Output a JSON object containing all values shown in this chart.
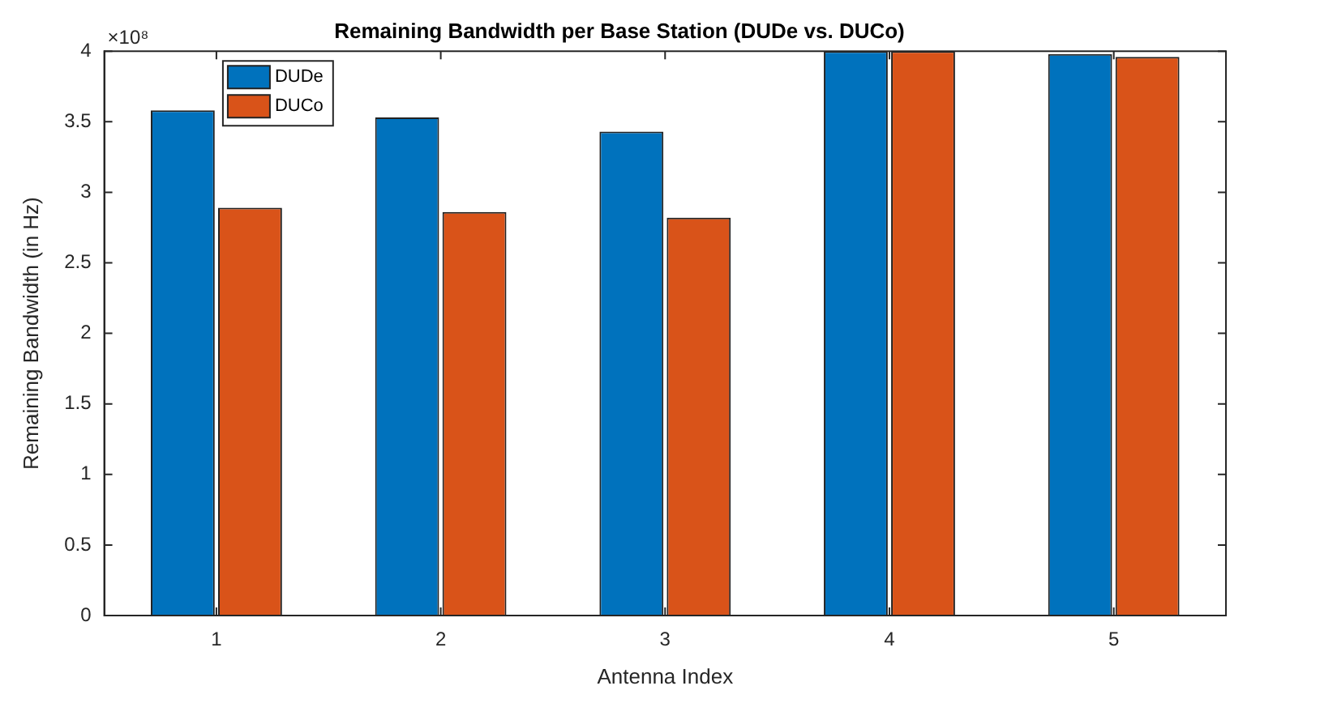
{
  "chart_data": {
    "type": "bar",
    "title": "Remaining Bandwidth per Base Station (DUDe vs. DUCo)",
    "xlabel": "Antenna Index",
    "ylabel": "Remaining Bandwidth (in Hz)",
    "annotations": [
      "×10⁸"
    ],
    "categories": [
      "1",
      "2",
      "3",
      "4",
      "5"
    ],
    "series": [
      {
        "name": "DUDe",
        "color": "#0072bd",
        "values": [
          3.58,
          3.53,
          3.43,
          4,
          3.98
        ]
      },
      {
        "name": "DUCo",
        "color": "#d95319",
        "values": [
          2.89,
          2.86,
          2.82,
          4,
          3.96
        ]
      }
    ],
    "ylim": [
      0,
      4
    ],
    "yticks": [
      0,
      0.5,
      1,
      1.5,
      2,
      2.5,
      3,
      3.5,
      4
    ],
    "grid": false,
    "legend": "top left"
  }
}
